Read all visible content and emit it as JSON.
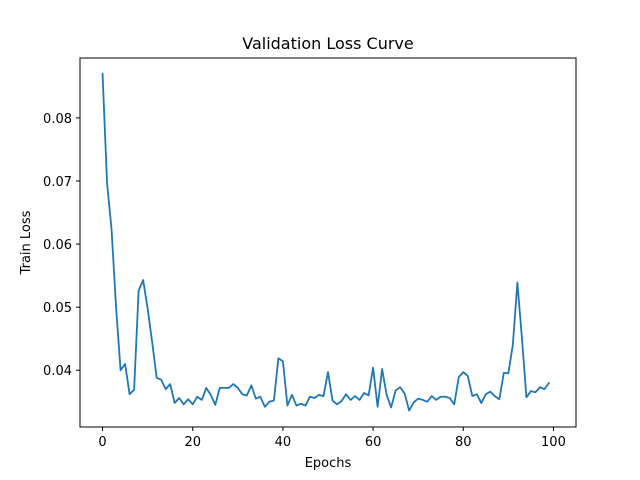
{
  "chart_data": {
    "type": "line",
    "title": "Validation Loss Curve",
    "xlabel": "Epochs",
    "ylabel": "Train Loss",
    "xlim": [
      -5,
      105
    ],
    "ylim": [
      0.031,
      0.0895
    ],
    "xticks": [
      0,
      20,
      40,
      60,
      80,
      100
    ],
    "yticks": [
      0.04,
      0.05,
      0.06,
      0.07,
      0.08
    ],
    "ytick_labels": [
      "0.04",
      "0.05",
      "0.06",
      "0.07",
      "0.08"
    ],
    "grid": false,
    "line_color": "#1f77b4",
    "series": [
      {
        "x": [
          0,
          1,
          2,
          3,
          4,
          5,
          6,
          7,
          8,
          9,
          10,
          11,
          12,
          13,
          14,
          15,
          16,
          17,
          18,
          19,
          20,
          21,
          22,
          23,
          24,
          25,
          26,
          27,
          28,
          29,
          30,
          31,
          32,
          33,
          34,
          35,
          36,
          37,
          38,
          39,
          40,
          41,
          42,
          43,
          44,
          45,
          46,
          47,
          48,
          49,
          50,
          51,
          52,
          53,
          54,
          55,
          56,
          57,
          58,
          59,
          60,
          61,
          62,
          63,
          64,
          65,
          66,
          67,
          68,
          69,
          70,
          71,
          72,
          73,
          74,
          75,
          76,
          77,
          78,
          79,
          80,
          81,
          82,
          83,
          84,
          85,
          86,
          87,
          88,
          89,
          90,
          91,
          92,
          93,
          94,
          95,
          96,
          97,
          98,
          99
        ],
        "y": [
          0.087,
          0.0697,
          0.0623,
          0.05,
          0.04,
          0.041,
          0.0362,
          0.0369,
          0.0526,
          0.0543,
          0.0498,
          0.0445,
          0.0388,
          0.0385,
          0.037,
          0.0378,
          0.0348,
          0.0356,
          0.0346,
          0.0354,
          0.0346,
          0.0358,
          0.0353,
          0.0372,
          0.0361,
          0.0345,
          0.0372,
          0.0372,
          0.0372,
          0.0378,
          0.0372,
          0.0362,
          0.036,
          0.0376,
          0.0355,
          0.0358,
          0.0342,
          0.035,
          0.0352,
          0.0419,
          0.0414,
          0.0344,
          0.0361,
          0.0344,
          0.0347,
          0.0344,
          0.0358,
          0.0356,
          0.0361,
          0.0359,
          0.0397,
          0.0352,
          0.0346,
          0.0351,
          0.0362,
          0.0353,
          0.0359,
          0.0353,
          0.0364,
          0.036,
          0.0404,
          0.0342,
          0.0402,
          0.0361,
          0.0341,
          0.0368,
          0.0373,
          0.0363,
          0.0336,
          0.0349,
          0.0355,
          0.0353,
          0.035,
          0.0359,
          0.0353,
          0.0358,
          0.0358,
          0.0356,
          0.0346,
          0.0389,
          0.0397,
          0.0391,
          0.0359,
          0.0362,
          0.0348,
          0.0362,
          0.0366,
          0.0359,
          0.0354,
          0.0396,
          0.0395,
          0.0441,
          0.0539,
          0.0452,
          0.0357,
          0.0367,
          0.0365,
          0.0373,
          0.037,
          0.038
        ]
      }
    ]
  }
}
